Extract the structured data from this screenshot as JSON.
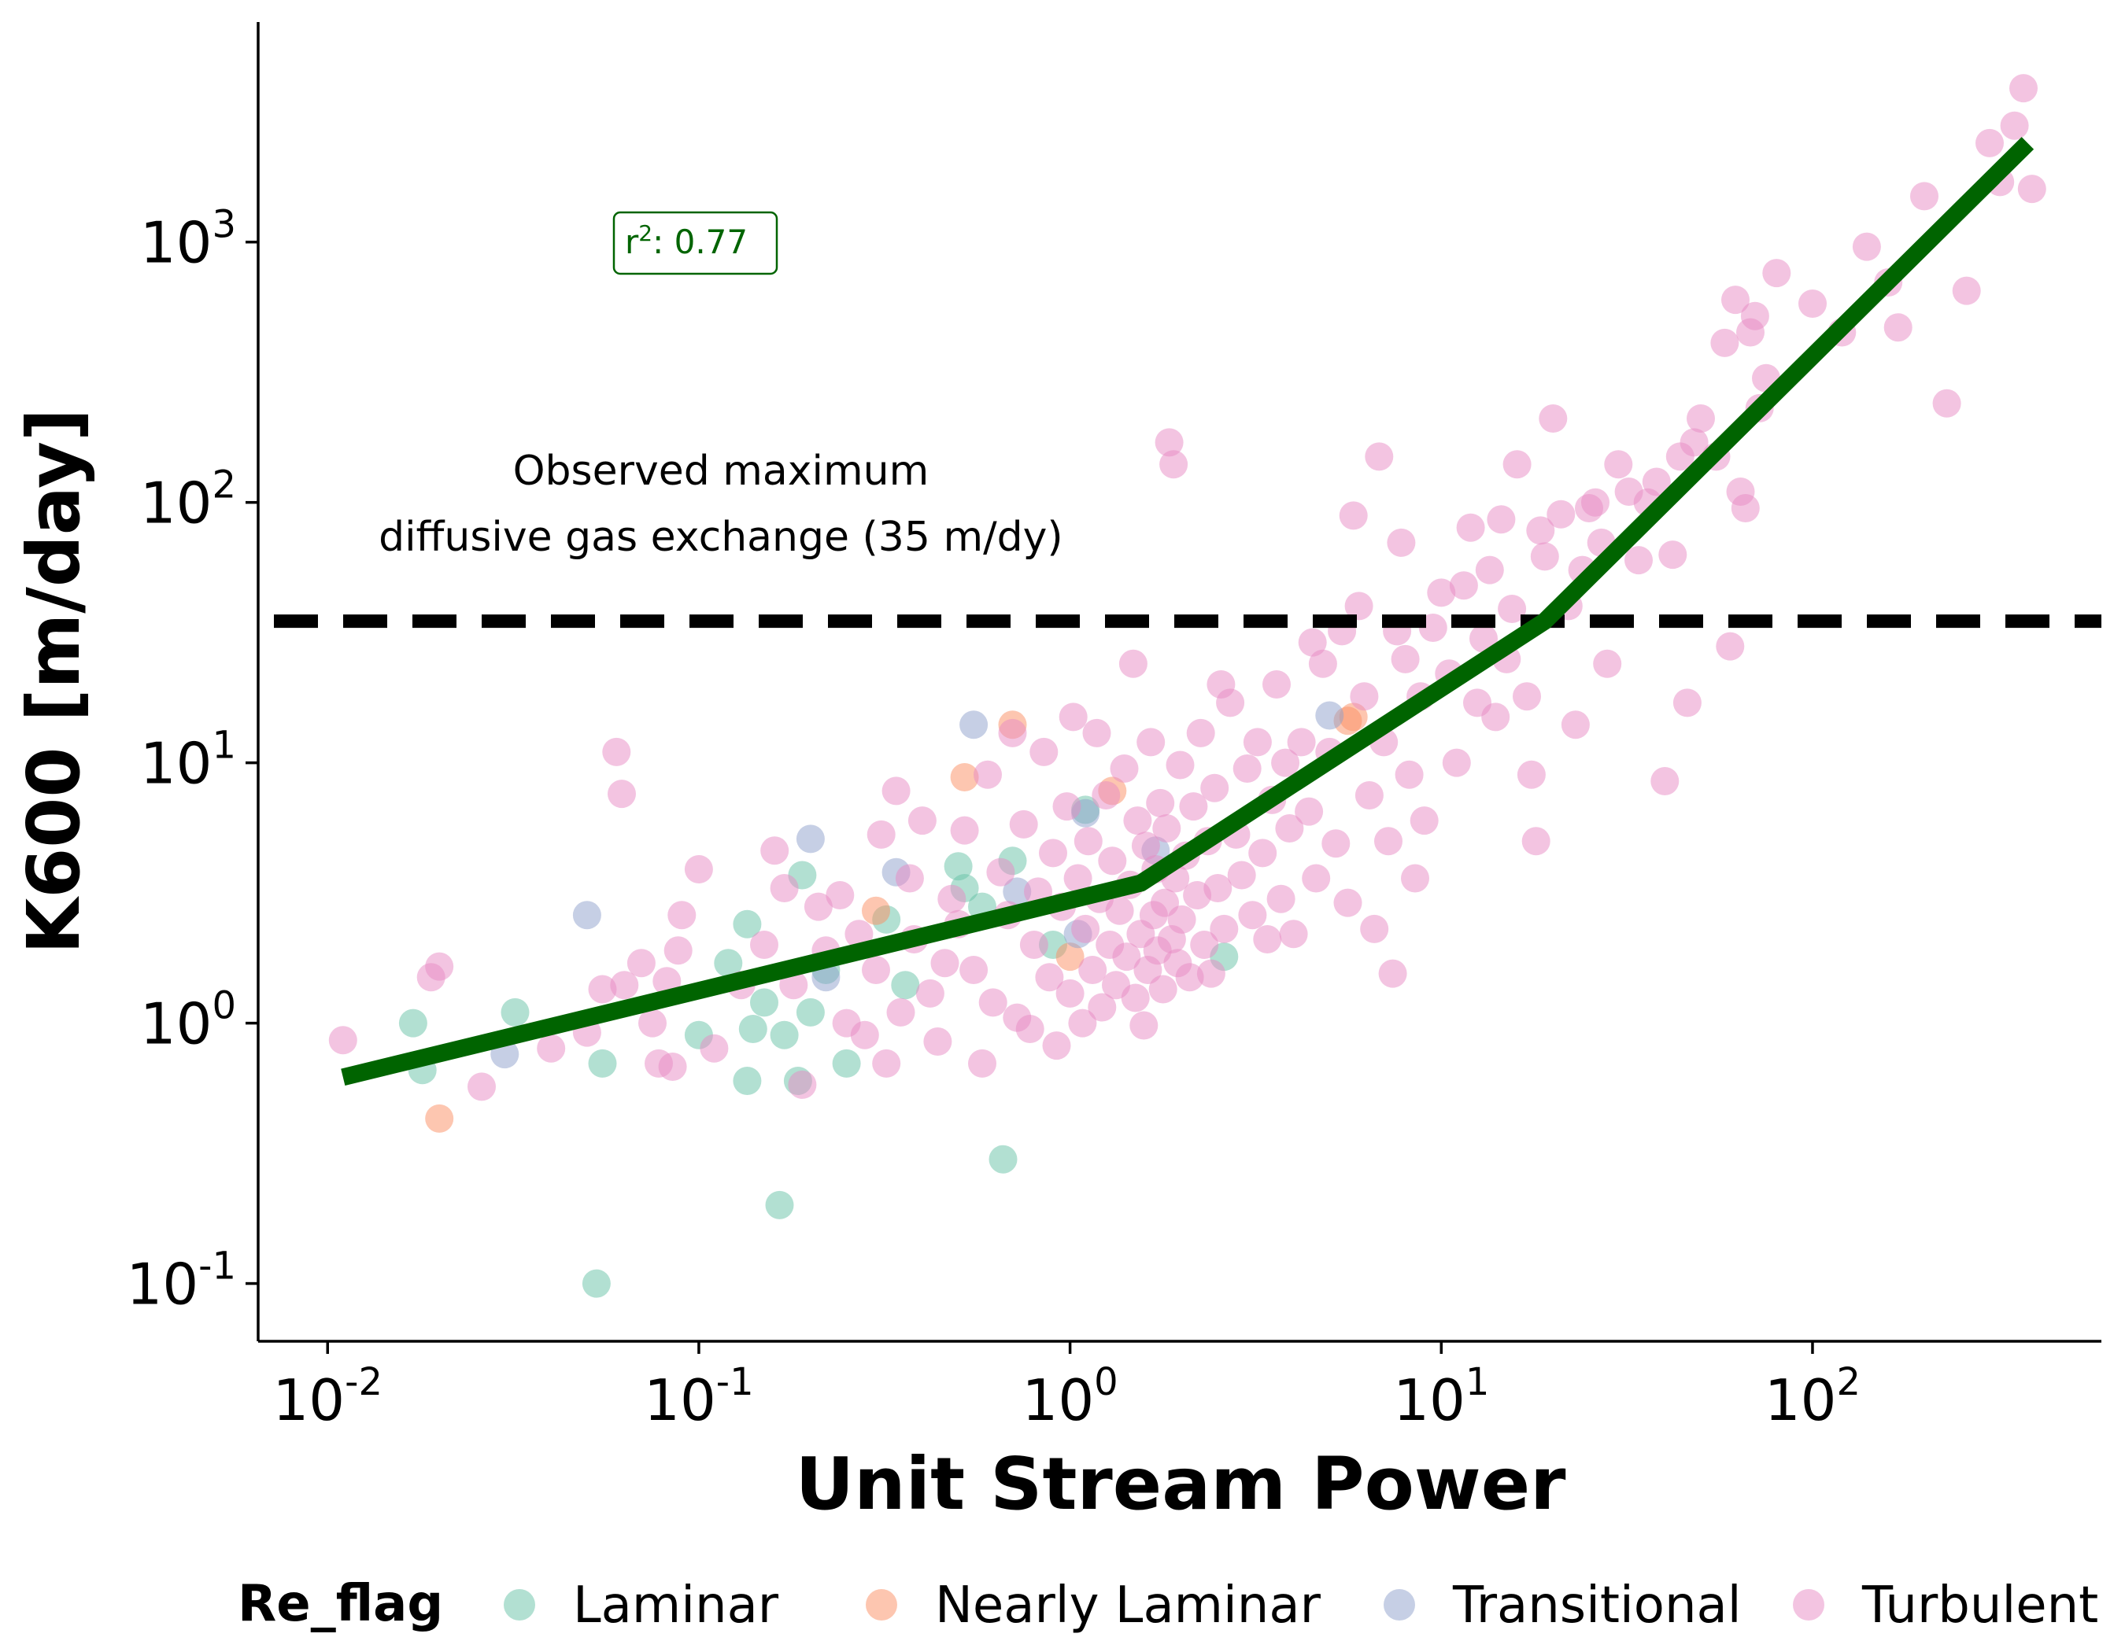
{
  "chart_data": {
    "type": "scatter",
    "xlabel": "Unit Stream Power",
    "ylabel": "K600 [m/day]",
    "xscale": "log",
    "yscale": "log",
    "xlim": [
      0.0065,
      600
    ],
    "ylim": [
      0.06,
      7000
    ],
    "x_ticks": [
      {
        "value": 0.01,
        "base": "10",
        "exp": "-2"
      },
      {
        "value": 0.1,
        "base": "10",
        "exp": "-1"
      },
      {
        "value": 1,
        "base": "10",
        "exp": "0"
      },
      {
        "value": 10,
        "base": "10",
        "exp": "1"
      },
      {
        "value": 100,
        "base": "10",
        "exp": "2"
      }
    ],
    "y_ticks": [
      {
        "value": 0.1,
        "base": "10",
        "exp": "-1"
      },
      {
        "value": 1,
        "base": "10",
        "exp": "0"
      },
      {
        "value": 10,
        "base": "10",
        "exp": "1"
      },
      {
        "value": 100,
        "base": "10",
        "exp": "2"
      },
      {
        "value": 1000,
        "base": "10",
        "exp": "3"
      }
    ],
    "grid": false,
    "legend": {
      "title": "Re_flag",
      "placement": "bottom-outside",
      "entries": [
        {
          "name": "Laminar",
          "color": "#66c2a5"
        },
        {
          "name": "Nearly Laminar",
          "color": "#fc8d62"
        },
        {
          "name": "Transitional",
          "color": "#8da0cb"
        },
        {
          "name": "Turbulent",
          "color": "#e78ac3"
        }
      ]
    },
    "threshold_line": {
      "y": 35,
      "label_line1": "Observed maximum",
      "label_line2": "diffusive gas exchange (35 m/dy)",
      "style": "dashed",
      "color": "#000000"
    },
    "fit_line": {
      "color": "#006400",
      "points": [
        [
          0.011,
          0.62
        ],
        [
          1.55,
          3.45
        ],
        [
          19,
          35
        ],
        [
          380,
          2400
        ]
      ]
    },
    "annotation": {
      "text_prefix": "r",
      "text_sup": "2",
      "text_suffix": ": 0.77",
      "color": "#006400"
    },
    "series": [
      {
        "name": "Laminar",
        "color": "#66c2a5",
        "points": [
          [
            0.017,
            1.0
          ],
          [
            0.018,
            0.66
          ],
          [
            0.032,
            1.1
          ],
          [
            0.055,
            0.7
          ],
          [
            0.053,
            0.1
          ],
          [
            0.1,
            0.9
          ],
          [
            0.12,
            1.7
          ],
          [
            0.135,
            2.4
          ],
          [
            0.15,
            1.2
          ],
          [
            0.14,
            0.95
          ],
          [
            0.135,
            0.6
          ],
          [
            0.165,
            0.2
          ],
          [
            0.17,
            0.9
          ],
          [
            0.185,
            0.6
          ],
          [
            0.19,
            3.7
          ],
          [
            0.2,
            1.1
          ],
          [
            0.22,
            1.6
          ],
          [
            0.25,
            0.7
          ],
          [
            0.32,
            2.5
          ],
          [
            0.36,
            1.4
          ],
          [
            0.5,
            4.0
          ],
          [
            0.52,
            3.3
          ],
          [
            0.58,
            2.8
          ],
          [
            0.66,
            0.3
          ],
          [
            0.7,
            4.2
          ],
          [
            0.9,
            2.0
          ],
          [
            1.1,
            6.6
          ],
          [
            2.6,
            1.8
          ]
        ]
      },
      {
        "name": "Nearly Laminar",
        "color": "#fc8d62",
        "points": [
          [
            0.02,
            0.43
          ],
          [
            0.3,
            2.7
          ],
          [
            0.52,
            8.8
          ],
          [
            0.7,
            14
          ],
          [
            1.0,
            1.8
          ],
          [
            1.3,
            7.8
          ],
          [
            5.6,
            14.5
          ],
          [
            5.8,
            15
          ]
        ]
      },
      {
        "name": "Transitional",
        "color": "#8da0cb",
        "points": [
          [
            0.03,
            0.76
          ],
          [
            0.05,
            2.6
          ],
          [
            0.2,
            5.1
          ],
          [
            0.22,
            1.5
          ],
          [
            0.34,
            3.8
          ],
          [
            0.55,
            14
          ],
          [
            0.72,
            3.2
          ],
          [
            1.05,
            2.2
          ],
          [
            1.1,
            6.4
          ],
          [
            5.0,
            15.2
          ],
          [
            1.7,
            4.6
          ]
        ]
      },
      {
        "name": "Turbulent",
        "color": "#e78ac3",
        "points": [
          [
            0.011,
            0.86
          ],
          [
            0.019,
            1.5
          ],
          [
            0.02,
            1.65
          ],
          [
            0.026,
            0.57
          ],
          [
            0.04,
            0.8
          ],
          [
            0.05,
            0.92
          ],
          [
            0.055,
            1.35
          ],
          [
            0.06,
            11
          ],
          [
            0.062,
            7.6
          ],
          [
            0.063,
            1.4
          ],
          [
            0.07,
            1.7
          ],
          [
            0.075,
            1.0
          ],
          [
            0.078,
            0.7
          ],
          [
            0.082,
            1.45
          ],
          [
            0.085,
            0.68
          ],
          [
            0.088,
            1.9
          ],
          [
            0.09,
            2.6
          ],
          [
            0.1,
            3.9
          ],
          [
            0.11,
            0.8
          ],
          [
            0.13,
            1.4
          ],
          [
            0.15,
            2.0
          ],
          [
            0.16,
            4.6
          ],
          [
            0.17,
            3.3
          ],
          [
            0.18,
            1.4
          ],
          [
            0.19,
            0.58
          ],
          [
            0.21,
            2.8
          ],
          [
            0.22,
            1.9
          ],
          [
            0.24,
            3.1
          ],
          [
            0.25,
            1.0
          ],
          [
            0.27,
            2.2
          ],
          [
            0.28,
            0.9
          ],
          [
            0.3,
            1.6
          ],
          [
            0.31,
            5.3
          ],
          [
            0.32,
            0.7
          ],
          [
            0.34,
            7.8
          ],
          [
            0.35,
            1.1
          ],
          [
            0.37,
            3.6
          ],
          [
            0.38,
            2.1
          ],
          [
            0.4,
            6.0
          ],
          [
            0.42,
            1.3
          ],
          [
            0.44,
            0.85
          ],
          [
            0.46,
            1.7
          ],
          [
            0.48,
            3.0
          ],
          [
            0.5,
            2.4
          ],
          [
            0.52,
            5.5
          ],
          [
            0.55,
            1.6
          ],
          [
            0.58,
            0.7
          ],
          [
            0.6,
            9.0
          ],
          [
            0.62,
            1.2
          ],
          [
            0.65,
            3.8
          ],
          [
            0.68,
            2.6
          ],
          [
            0.7,
            13
          ],
          [
            0.72,
            1.05
          ],
          [
            0.75,
            5.8
          ],
          [
            0.78,
            0.95
          ],
          [
            0.8,
            2.0
          ],
          [
            0.82,
            3.2
          ],
          [
            0.85,
            11
          ],
          [
            0.88,
            1.5
          ],
          [
            0.9,
            4.5
          ],
          [
            0.92,
            0.82
          ],
          [
            0.95,
            2.8
          ],
          [
            0.98,
            6.8
          ],
          [
            1.0,
            1.3
          ],
          [
            1.02,
            15
          ],
          [
            1.05,
            3.6
          ],
          [
            1.08,
            1.0
          ],
          [
            1.1,
            2.3
          ],
          [
            1.12,
            5.0
          ],
          [
            1.15,
            1.6
          ],
          [
            1.18,
            13
          ],
          [
            1.2,
            3.0
          ],
          [
            1.22,
            1.15
          ],
          [
            1.25,
            7.5
          ],
          [
            1.28,
            2.0
          ],
          [
            1.3,
            4.2
          ],
          [
            1.33,
            1.4
          ],
          [
            1.36,
            2.7
          ],
          [
            1.4,
            9.5
          ],
          [
            1.42,
            1.8
          ],
          [
            1.45,
            3.4
          ],
          [
            1.48,
            24
          ],
          [
            1.5,
            1.25
          ],
          [
            1.52,
            6.0
          ],
          [
            1.55,
            2.2
          ],
          [
            1.58,
            0.98
          ],
          [
            1.6,
            4.8
          ],
          [
            1.62,
            1.6
          ],
          [
            1.65,
            12
          ],
          [
            1.68,
            2.6
          ],
          [
            1.7,
            3.9
          ],
          [
            1.72,
            1.9
          ],
          [
            1.75,
            7.0
          ],
          [
            1.78,
            1.35
          ],
          [
            1.8,
            2.9
          ],
          [
            1.82,
            5.6
          ],
          [
            1.85,
            170
          ],
          [
            1.88,
            2.1
          ],
          [
            1.9,
            140
          ],
          [
            1.92,
            3.6
          ],
          [
            1.95,
            1.7
          ],
          [
            1.98,
            9.8
          ],
          [
            2.0,
            2.5
          ],
          [
            2.05,
            4.4
          ],
          [
            2.1,
            1.5
          ],
          [
            2.15,
            6.8
          ],
          [
            2.2,
            3.1
          ],
          [
            2.25,
            13
          ],
          [
            2.3,
            2.0
          ],
          [
            2.35,
            5.0
          ],
          [
            2.4,
            1.55
          ],
          [
            2.45,
            8.0
          ],
          [
            2.5,
            3.3
          ],
          [
            2.55,
            20
          ],
          [
            2.6,
            2.3
          ],
          [
            2.7,
            17
          ],
          [
            2.8,
            5.3
          ],
          [
            2.9,
            3.7
          ],
          [
            3.0,
            9.5
          ],
          [
            3.1,
            2.6
          ],
          [
            3.2,
            12
          ],
          [
            3.3,
            4.5
          ],
          [
            3.4,
            2.1
          ],
          [
            3.5,
            7.2
          ],
          [
            3.6,
            20
          ],
          [
            3.7,
            3.0
          ],
          [
            3.8,
            10
          ],
          [
            3.9,
            5.6
          ],
          [
            4.0,
            2.2
          ],
          [
            4.2,
            12
          ],
          [
            4.4,
            6.5
          ],
          [
            4.5,
            29
          ],
          [
            4.6,
            3.6
          ],
          [
            4.8,
            24
          ],
          [
            5.0,
            11
          ],
          [
            5.2,
            4.9
          ],
          [
            5.4,
            32
          ],
          [
            5.6,
            2.9
          ],
          [
            5.8,
            89
          ],
          [
            6.0,
            40
          ],
          [
            6.2,
            18
          ],
          [
            6.4,
            7.5
          ],
          [
            6.6,
            2.3
          ],
          [
            6.8,
            150
          ],
          [
            7.0,
            12
          ],
          [
            7.2,
            5.0
          ],
          [
            7.4,
            1.55
          ],
          [
            7.6,
            32
          ],
          [
            7.8,
            70
          ],
          [
            8.0,
            25
          ],
          [
            8.2,
            9.0
          ],
          [
            8.5,
            3.6
          ],
          [
            8.8,
            18
          ],
          [
            9.0,
            6.0
          ],
          [
            9.5,
            33
          ],
          [
            10,
            45
          ],
          [
            10.5,
            22
          ],
          [
            11,
            10
          ],
          [
            11.5,
            48
          ],
          [
            12,
            80
          ],
          [
            12.5,
            17
          ],
          [
            13,
            30
          ],
          [
            13.5,
            55
          ],
          [
            14,
            15
          ],
          [
            14.5,
            86
          ],
          [
            15,
            25
          ],
          [
            15.5,
            39
          ],
          [
            16,
            140
          ],
          [
            17,
            18
          ],
          [
            17.5,
            9.0
          ],
          [
            18,
            5.0
          ],
          [
            18.5,
            78
          ],
          [
            19,
            62
          ],
          [
            20,
            210
          ],
          [
            21,
            90
          ],
          [
            22,
            40
          ],
          [
            23,
            14
          ],
          [
            24,
            55
          ],
          [
            25,
            95
          ],
          [
            26,
            100
          ],
          [
            27,
            70
          ],
          [
            28,
            24
          ],
          [
            30,
            140
          ],
          [
            32,
            110
          ],
          [
            34,
            60
          ],
          [
            36,
            100
          ],
          [
            38,
            120
          ],
          [
            40,
            8.5
          ],
          [
            42,
            63
          ],
          [
            44,
            150
          ],
          [
            46,
            17
          ],
          [
            48,
            170
          ],
          [
            50,
            210
          ],
          [
            55,
            150
          ],
          [
            58,
            410
          ],
          [
            60,
            28
          ],
          [
            62,
            600
          ],
          [
            64,
            110
          ],
          [
            66,
            95
          ],
          [
            68,
            450
          ],
          [
            70,
            520
          ],
          [
            72,
            230
          ],
          [
            75,
            300
          ],
          [
            80,
            760
          ],
          [
            100,
            580
          ],
          [
            120,
            450
          ],
          [
            140,
            960
          ],
          [
            160,
            700
          ],
          [
            170,
            470
          ],
          [
            200,
            1500
          ],
          [
            230,
            240
          ],
          [
            260,
            650
          ],
          [
            300,
            2400
          ],
          [
            320,
            1700
          ],
          [
            350,
            2800
          ],
          [
            370,
            3900
          ],
          [
            390,
            1600
          ]
        ]
      }
    ]
  }
}
